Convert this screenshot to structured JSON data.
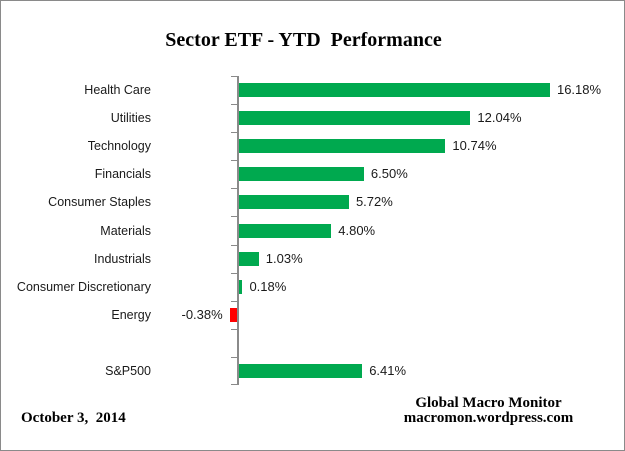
{
  "title": "Sector ETF - YTD  Performance",
  "chart_data": {
    "type": "bar",
    "orientation": "horizontal",
    "title": "Sector ETF - YTD  Performance",
    "categories": [
      "Health Care",
      "Utilities",
      "Technology",
      "Financials",
      "Consumer Staples",
      "Materials",
      "Industrials",
      "Consumer Discretionary",
      "Energy",
      "",
      "S&P500"
    ],
    "values": [
      16.18,
      12.04,
      10.74,
      6.5,
      5.72,
      4.8,
      1.03,
      0.18,
      -0.38,
      null,
      6.41
    ],
    "value_labels": [
      "16.18%",
      "12.04%",
      "10.74%",
      "6.50%",
      "5.72%",
      "4.80%",
      "1.03%",
      "0.18%",
      "-0.38%",
      "",
      "6.41%"
    ],
    "xlabel": "",
    "ylabel": "",
    "xlim": [
      -1,
      17
    ],
    "grid": false,
    "legend": false,
    "positive_color": "#00A94F",
    "negative_color": "#FF0000",
    "axis_color": "#8a8a8a"
  },
  "footer": {
    "date": "October 3,  2014",
    "credit_line1": "Global Macro Monitor",
    "credit_line2": "macromon.wordpress.com"
  }
}
